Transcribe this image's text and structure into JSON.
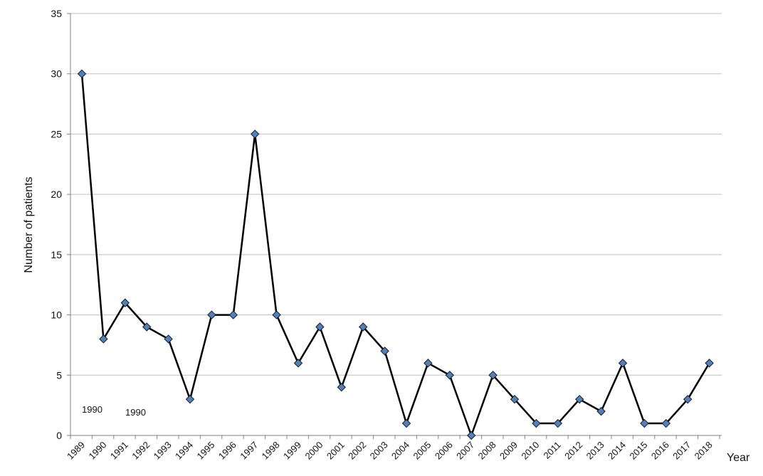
{
  "chart_data": {
    "type": "line",
    "title": "",
    "xlabel": "Year",
    "ylabel": "Number of patients",
    "ylim": [
      0,
      35
    ],
    "yticks": [
      0,
      5,
      10,
      15,
      20,
      25,
      30,
      35
    ],
    "grid": true,
    "legend": "none",
    "x": [
      "1989",
      "1990",
      "1991",
      "1992",
      "1993",
      "1994",
      "1995",
      "1996",
      "1997",
      "1998",
      "1999",
      "2000",
      "2001",
      "2002",
      "2003",
      "2004",
      "2005",
      "2006",
      "2007",
      "2008",
      "2009",
      "2010",
      "2011",
      "2012",
      "2013",
      "2014",
      "2015",
      "2016",
      "2017",
      "2018"
    ],
    "series": [
      {
        "values": [
          30,
          8,
          11,
          9,
          8,
          3,
          10,
          10,
          25,
          10,
          6,
          9,
          4,
          9,
          7,
          1,
          6,
          5,
          0,
          5,
          3,
          1,
          1,
          3,
          2,
          6,
          1,
          1,
          3,
          6
        ],
        "line_color": "#000000",
        "marker": "diamond",
        "marker_color": "#4f81bd"
      }
    ],
    "annotations": [
      "1990",
      "1990"
    ]
  },
  "colors": {
    "gridline": "#bfbfbf",
    "axis": "#808080"
  }
}
